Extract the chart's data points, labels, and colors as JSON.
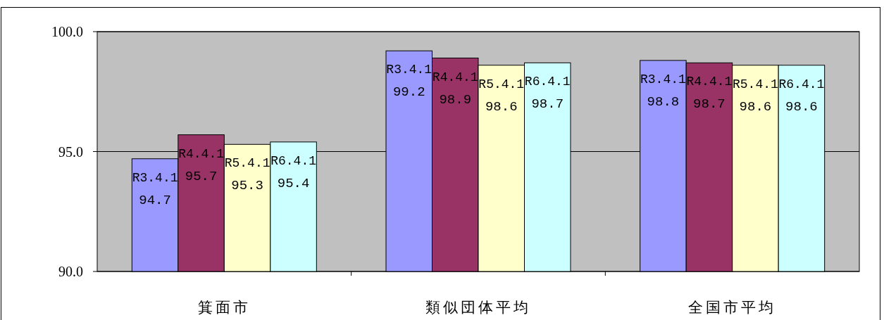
{
  "chart_data": {
    "type": "bar",
    "categories": [
      "箕面市",
      "類似団体平均",
      "全国市平均"
    ],
    "series": [
      {
        "name": "R3.4.1",
        "color": "#9999ff",
        "values": [
          94.7,
          99.2,
          98.8
        ]
      },
      {
        "name": "R4.4.1",
        "color": "#993366",
        "values": [
          95.7,
          98.9,
          98.7
        ]
      },
      {
        "name": "R5.4.1",
        "color": "#ffffcc",
        "values": [
          95.3,
          98.6,
          98.6
        ]
      },
      {
        "name": "R6.4.1",
        "color": "#ccffff",
        "values": [
          95.4,
          98.7,
          98.6
        ]
      }
    ],
    "ylim": [
      90,
      100
    ],
    "yticks": [
      {
        "value": 90,
        "label": "90.0"
      },
      {
        "value": 95,
        "label": "95.0"
      },
      {
        "value": 100,
        "label": "100.0"
      }
    ],
    "grid": "y",
    "legend": false,
    "data_labels": true
  }
}
